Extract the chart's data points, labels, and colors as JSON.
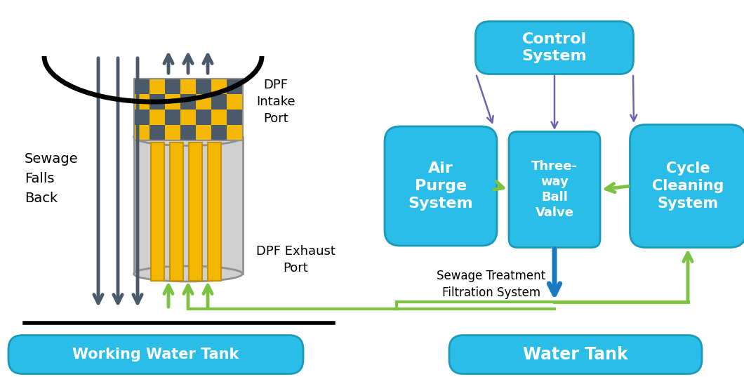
{
  "bg_color": "#ffffff",
  "cyan_box_color": "#29bde8",
  "cyan_box_edge": "#1a9ab8",
  "cyan_text_color": "#ffffff",
  "black_text_color": "#000000",
  "gray_cylinder_color": "#d0d0d0",
  "gray_cylinder_edge": "#909090",
  "yellow_color": "#f5b800",
  "dark_gray_arrow": "#4a5a6a",
  "green_arrow": "#7dc242",
  "blue_arrow": "#1a7abf",
  "purple_arrow": "#7060b0",
  "checker_dark": "#4a5a6a",
  "black_line": "#000000",
  "working_tank_label": "Working Water Tank",
  "water_tank_label": "Water Tank",
  "control_label": "Control\nSystem",
  "air_purge_label": "Air\nPurge\nSystem",
  "three_way_label": "Three-\nway\nBall\nValve",
  "cycle_cleaning_label": "Cycle\nCleaning\nSystem",
  "dpf_intake_label": "DPF\nIntake\nPort",
  "dpf_exhaust_label": "DPF Exhaust\nPort",
  "sewage_falls_label": "Sewage\nFalls\nBack",
  "sewage_treatment_label": "Sewage Treatment\nFiltration System"
}
